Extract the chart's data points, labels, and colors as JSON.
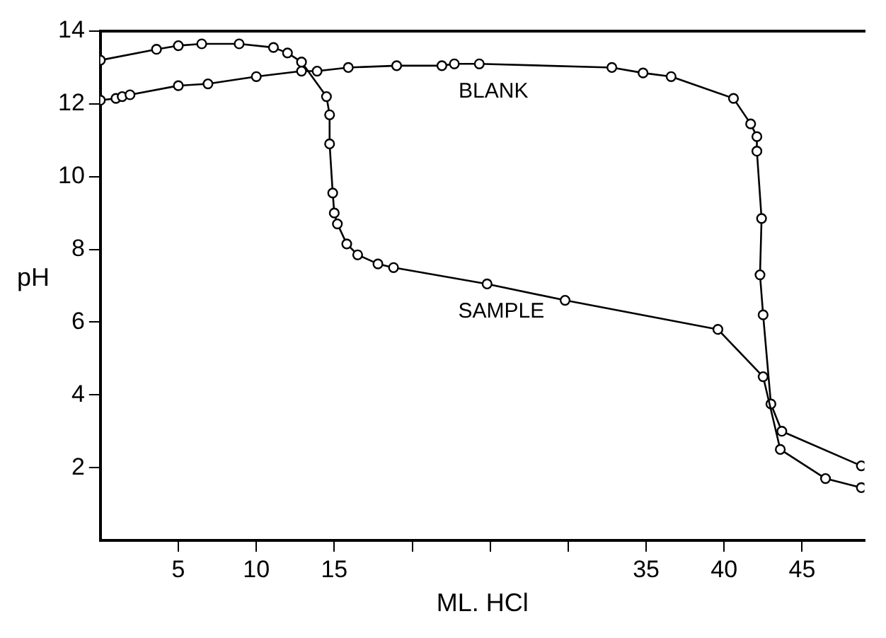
{
  "chart_data": {
    "type": "line",
    "xlabel": "ML. HCl",
    "ylabel": "pH",
    "xlim": [
      0,
      49
    ],
    "ylim": [
      0,
      14
    ],
    "xticks": [
      5,
      10,
      15,
      {
        "value": 20,
        "label": null
      },
      {
        "value": 25,
        "label": null
      },
      {
        "value": 30,
        "label": null
      },
      35,
      40,
      45
    ],
    "yticks": [
      2,
      4,
      6,
      8,
      10,
      12,
      14
    ],
    "grid": false,
    "legend": false,
    "marker": "circle",
    "line_style": "solid",
    "series": [
      {
        "name": "SAMPLE",
        "color": "#000000",
        "x": [
          0,
          3.6,
          5,
          6.5,
          8.9,
          11.1,
          12,
          12.9,
          14.5,
          14.7,
          14.7,
          14.9,
          15,
          15.2,
          15.8,
          16.5,
          17.8,
          18.8,
          24.8,
          29.8,
          39.6,
          42.5,
          43.6,
          46.5,
          48.8
        ],
        "values": [
          13.2,
          13.5,
          13.6,
          13.65,
          13.65,
          13.55,
          13.4,
          13.15,
          12.2,
          11.7,
          10.9,
          9.55,
          9,
          8.7,
          8.15,
          7.85,
          7.6,
          7.5,
          7.05,
          6.6,
          5.8,
          4.5,
          2.5,
          1.7,
          1.45
        ]
      },
      {
        "name": "BLANK",
        "color": "#000000",
        "x": [
          0,
          1,
          1.4,
          1.9,
          5,
          6.9,
          10,
          12.9,
          13.9,
          15.9,
          19,
          21.9,
          22.7,
          24.3,
          32.8,
          34.8,
          36.6,
          40.6,
          41.7,
          42.1,
          42.1,
          42.4,
          42.3,
          42.5,
          43,
          43.7,
          48.8
        ],
        "values": [
          12.1,
          12.15,
          12.2,
          12.25,
          12.5,
          12.55,
          12.75,
          12.9,
          12.9,
          13,
          13.05,
          13.05,
          13.1,
          13.1,
          13,
          12.85,
          12.75,
          12.15,
          11.45,
          11.1,
          10.7,
          8.85,
          7.3,
          6.2,
          3.75,
          3,
          2.05
        ]
      }
    ]
  }
}
